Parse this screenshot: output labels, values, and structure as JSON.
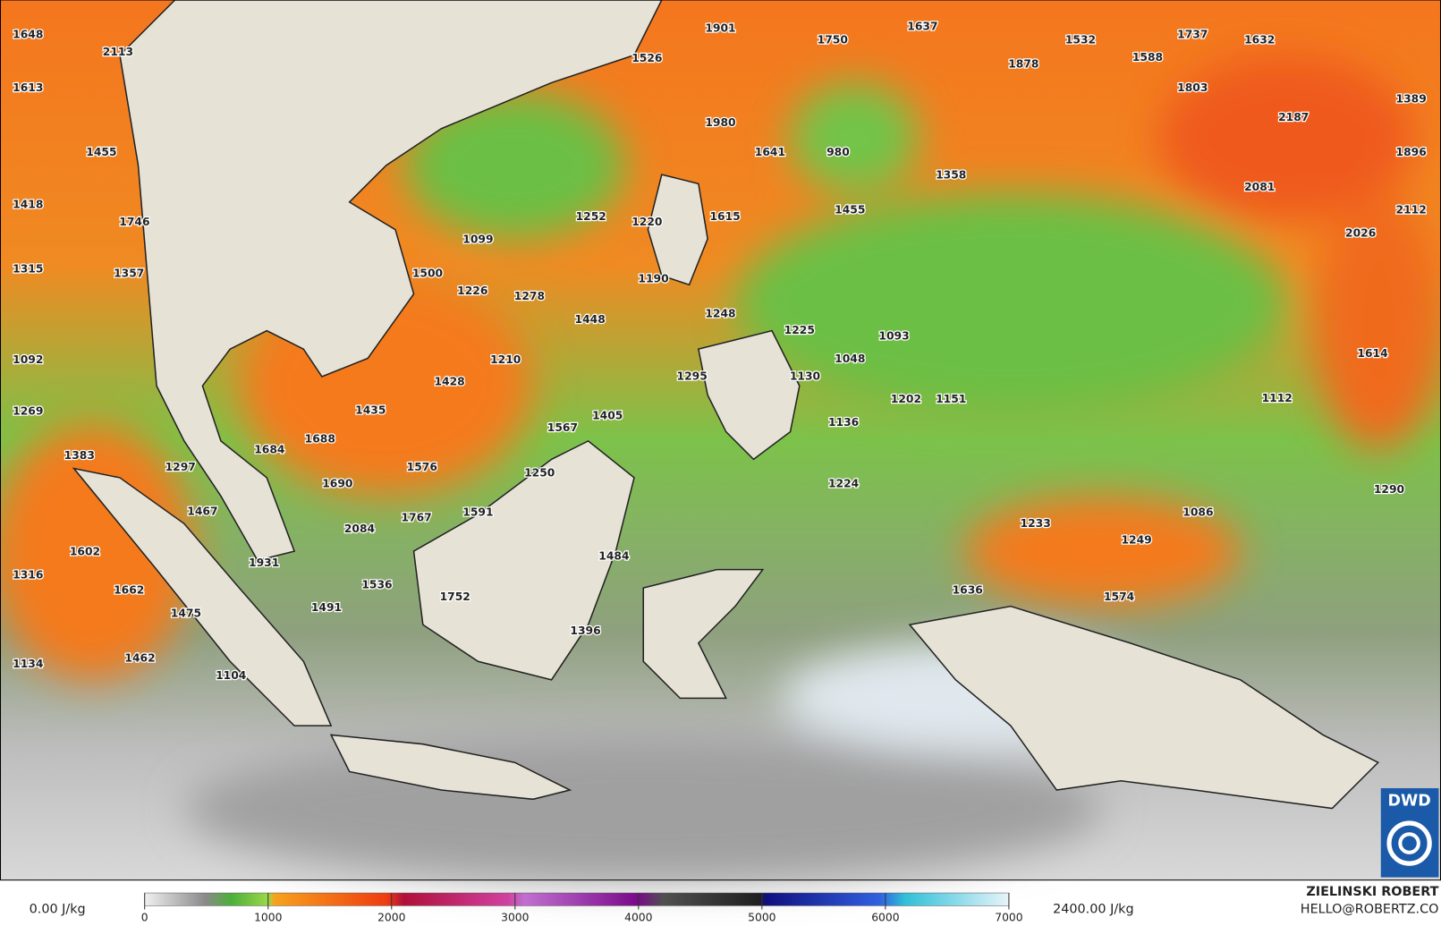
{
  "map": {
    "labels": [
      1648,
      2113,
      1613,
      1455,
      1418,
      1746,
      1315,
      1357,
      1092,
      1269,
      1383,
      1297,
      1684,
      1688,
      1435,
      1428,
      1210,
      1500,
      1226,
      1278,
      1099,
      1448,
      1252,
      1220,
      1615,
      1190,
      1248,
      1225,
      1093,
      1048,
      1130,
      1295,
      1405,
      1567,
      1202,
      1151,
      1136,
      1576,
      1690,
      1250,
      1467,
      1591,
      1767,
      2084,
      1224,
      1233,
      1086,
      1249,
      1290,
      1112,
      1614,
      1602,
      1931,
      1484,
      1316,
      1662,
      1536,
      1752,
      1636,
      1574,
      1491,
      1475,
      1396,
      1134,
      1462,
      1104,
      1901,
      1750,
      1637,
      1532,
      1737,
      1632,
      1526,
      1878,
      1588,
      1803,
      1389,
      2187,
      1980,
      1641,
      980,
      1358,
      1896,
      2081,
      2112,
      2026,
      1455
    ]
  },
  "colorbar": {
    "min_label": "0.00 J/kg",
    "max_label": "2400.00 J/kg",
    "lim": [
      0,
      7000
    ],
    "ticks": [
      0,
      1000,
      2000,
      3000,
      4000,
      5000,
      6000,
      7000
    ]
  },
  "credit": {
    "name": "ZIELINSKI ROBERT",
    "email": "HELLO@ROBERTZ.CO"
  },
  "logo": "DWD"
}
